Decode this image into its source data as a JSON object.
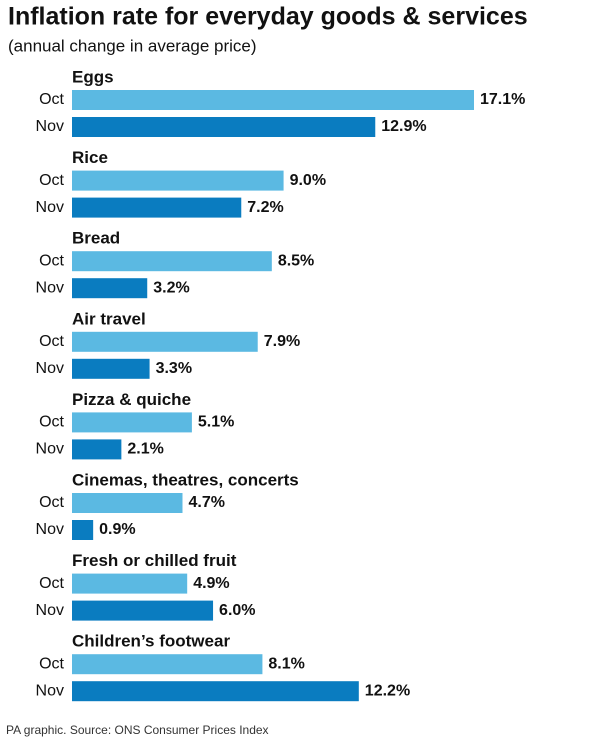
{
  "chart_data": {
    "type": "hbar-grouped",
    "title": "Inflation rate for everyday goods & services",
    "subtitle": "(annual change in average price)",
    "source": "PA graphic. Source: ONS Consumer Prices Index",
    "categories": [
      "Eggs",
      "Rice",
      "Bread",
      "Air travel",
      "Pizza & quiche",
      "Cinemas, theatres, concerts",
      "Fresh or chilled fruit",
      "Children’s footwear"
    ],
    "series": [
      {
        "name": "Oct",
        "color": "#5bb9e2",
        "values": [
          17.1,
          9.0,
          8.5,
          7.9,
          5.1,
          4.7,
          4.9,
          8.1
        ],
        "value_labels": [
          "17.1%",
          "9.0%",
          "8.5%",
          "7.9%",
          "5.1%",
          "4.7%",
          "4.9%",
          "8.1%"
        ]
      },
      {
        "name": "Nov",
        "color": "#0a7cc0",
        "values": [
          12.9,
          7.2,
          3.2,
          3.3,
          2.1,
          0.9,
          6.0,
          12.2
        ],
        "value_labels": [
          "12.9%",
          "7.2%",
          "3.2%",
          "3.3%",
          "2.1%",
          "0.9%",
          "6.0%",
          "12.2%"
        ]
      }
    ]
  }
}
